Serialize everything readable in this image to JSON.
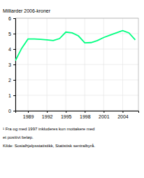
{
  "chart_data": {
    "type": "line",
    "y_label": "Milliarder 2006-kroner",
    "x": [
      1987,
      1988,
      1989,
      1990,
      1991,
      1992,
      1993,
      1994,
      1995,
      1996,
      1997,
      1998,
      1999,
      2000,
      2001,
      2002,
      2003,
      2004,
      2005,
      2006
    ],
    "values": [
      3.25,
      4.05,
      4.65,
      4.65,
      4.63,
      4.6,
      4.55,
      4.68,
      5.1,
      5.05,
      4.85,
      4.4,
      4.42,
      4.55,
      4.75,
      4.9,
      5.05,
      5.2,
      5.05,
      4.6
    ],
    "color": "#00FF80",
    "xlim": [
      1987,
      2006.5
    ],
    "xticks": [
      1989,
      1992,
      1995,
      1998,
      2001,
      2004
    ],
    "ylim": [
      0,
      6
    ],
    "yticks": [
      0,
      1,
      2,
      3,
      4,
      5,
      6
    ],
    "grid": true,
    "annotations": [
      "¹ Fra og med 1997 inkluderes kun mottakere med",
      "et positivt beløp.",
      "Kilde: Sosialhjelpsstatistikk, Statistisk sentralbyrå."
    ]
  }
}
